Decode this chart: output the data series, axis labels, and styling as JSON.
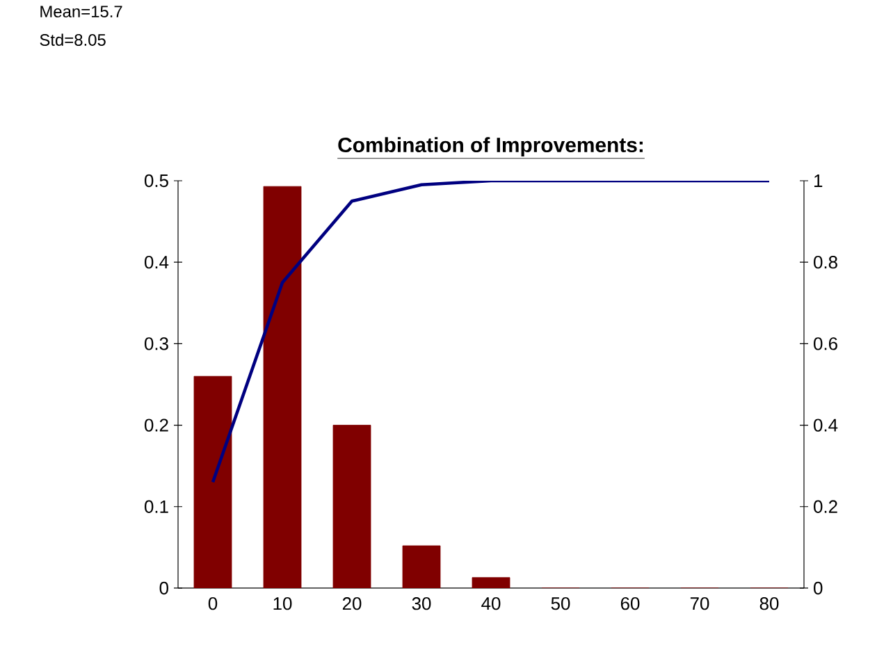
{
  "chart_data": {
    "type": "bar",
    "title": "Combination of Improvements:",
    "annotations": [
      "Mean=15.7",
      "Std=8.05"
    ],
    "categories": [
      "0",
      "10",
      "20",
      "30",
      "40",
      "50",
      "60",
      "70",
      "80"
    ],
    "series": [
      {
        "color": "#800000",
        "values": [
          0.26,
          0.493,
          0.2,
          0.052,
          0.013,
          0,
          0,
          0,
          0
        ]
      },
      {
        "type": "line",
        "axis": "y2",
        "color": "#000080",
        "values": [
          0.26,
          0.75,
          0.95,
          0.99,
          1,
          1,
          1,
          1,
          1
        ]
      }
    ],
    "ylim": [
      0,
      0.5
    ],
    "yticks": [
      0,
      0.1,
      0.2,
      0.3,
      0.4,
      0.5
    ],
    "y2lim": [
      0,
      1
    ],
    "y2ticks": [
      0,
      0.2,
      0.4,
      0.6,
      0.8,
      1
    ]
  }
}
